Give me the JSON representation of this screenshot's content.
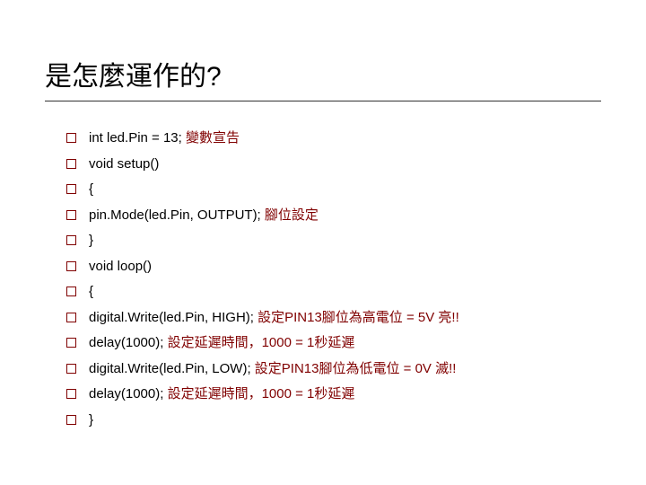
{
  "title": "是怎麼運作的?",
  "colors": {
    "text": "#000000",
    "annotation": "#800000",
    "bullet_border": "#800000",
    "underline": "#333333",
    "background": "#ffffff"
  },
  "typography": {
    "title_fontsize": 30,
    "line_fontsize": 15,
    "title_family": "Microsoft JhengHei",
    "code_family": "Verdana"
  },
  "lines": [
    {
      "code": "int led.Pin = 13; ",
      "annotation": " 變數宣告"
    },
    {
      "code": "void setup()",
      "annotation": ""
    },
    {
      "code": "{",
      "annotation": ""
    },
    {
      "code": "pin.Mode(led.Pin, OUTPUT);   ",
      "annotation": " 腳位設定"
    },
    {
      "code": "}",
      "annotation": ""
    },
    {
      "code": "void loop()",
      "annotation": ""
    },
    {
      "code": "{",
      "annotation": ""
    },
    {
      "code": "digital.Write(led.Pin, HIGH); ",
      "annotation": "設定PIN13腳位為高電位 = 5V 亮!!"
    },
    {
      "code": "delay(1000); ",
      "annotation": "設定延遲時間，1000 = 1秒延遲"
    },
    {
      "code": "digital.Write(led.Pin, LOW); ",
      "annotation": "設定PIN13腳位為低電位 = 0V 滅!!"
    },
    {
      "code": "delay(1000); ",
      "annotation": "設定延遲時間，1000 = 1秒延遲"
    },
    {
      "code": "}",
      "annotation": ""
    }
  ]
}
